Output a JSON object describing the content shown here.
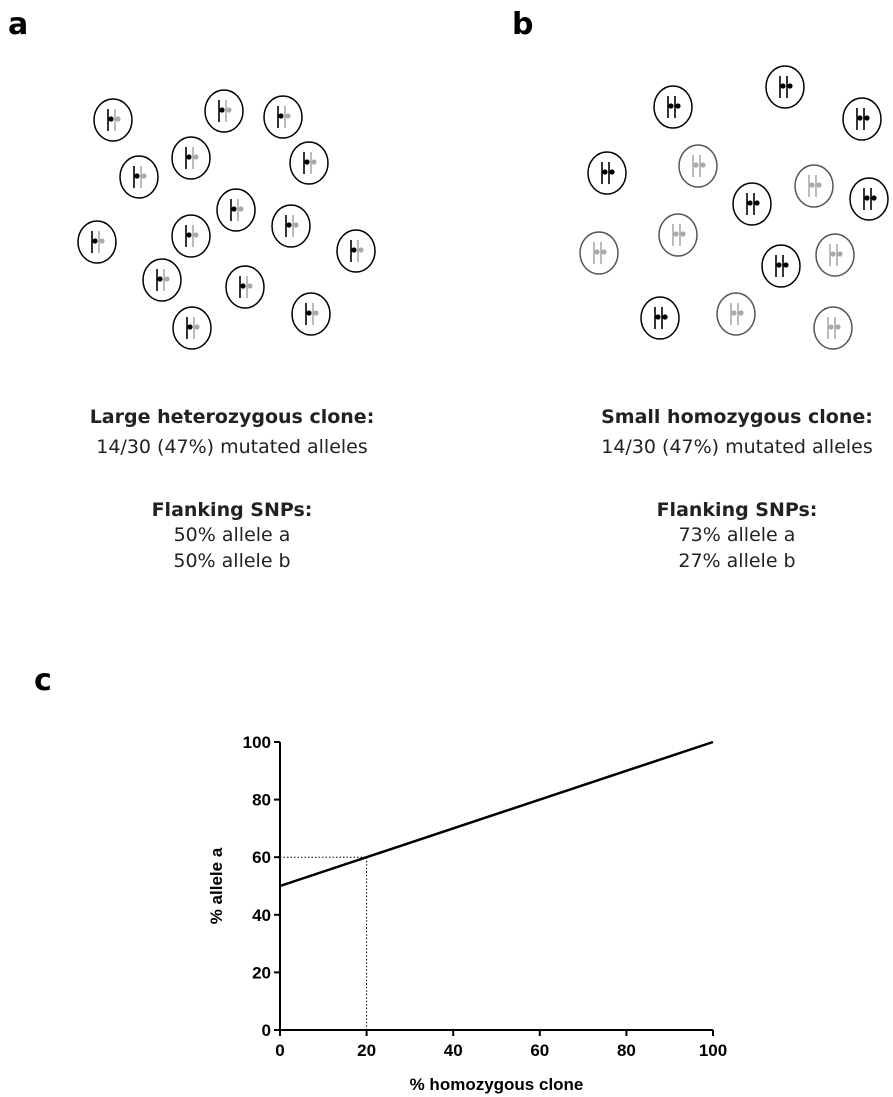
{
  "panels": [
    {
      "label": "a",
      "heading": "Large heterozygous clone:",
      "mutated": "14/30 (47%) mutated alleles",
      "snp_heading": "Flanking SNPs:",
      "snp_lines": [
        "50% allele a",
        "50% allele b"
      ]
    },
    {
      "label": "b",
      "heading": "Small homozygous clone:",
      "mutated": "14/30 (47%) mutated alleles",
      "snp_heading": "Flanking SNPs:",
      "snp_lines": [
        "73% allele a",
        "27% allele b"
      ]
    }
  ],
  "chart_label": "c",
  "chart_data": {
    "type": "line",
    "x": [
      0,
      100
    ],
    "values": [
      50,
      100
    ],
    "color": "#000000",
    "xlabel": "% homozygous clone",
    "ylabel": "% allele a",
    "xlim": [
      0,
      100
    ],
    "ylim": [
      0,
      100
    ],
    "xticks": [
      0,
      20,
      40,
      60,
      80,
      100
    ],
    "yticks": [
      0,
      20,
      40,
      60,
      80,
      100
    ],
    "reference": {
      "x": 20,
      "y": 60
    }
  }
}
